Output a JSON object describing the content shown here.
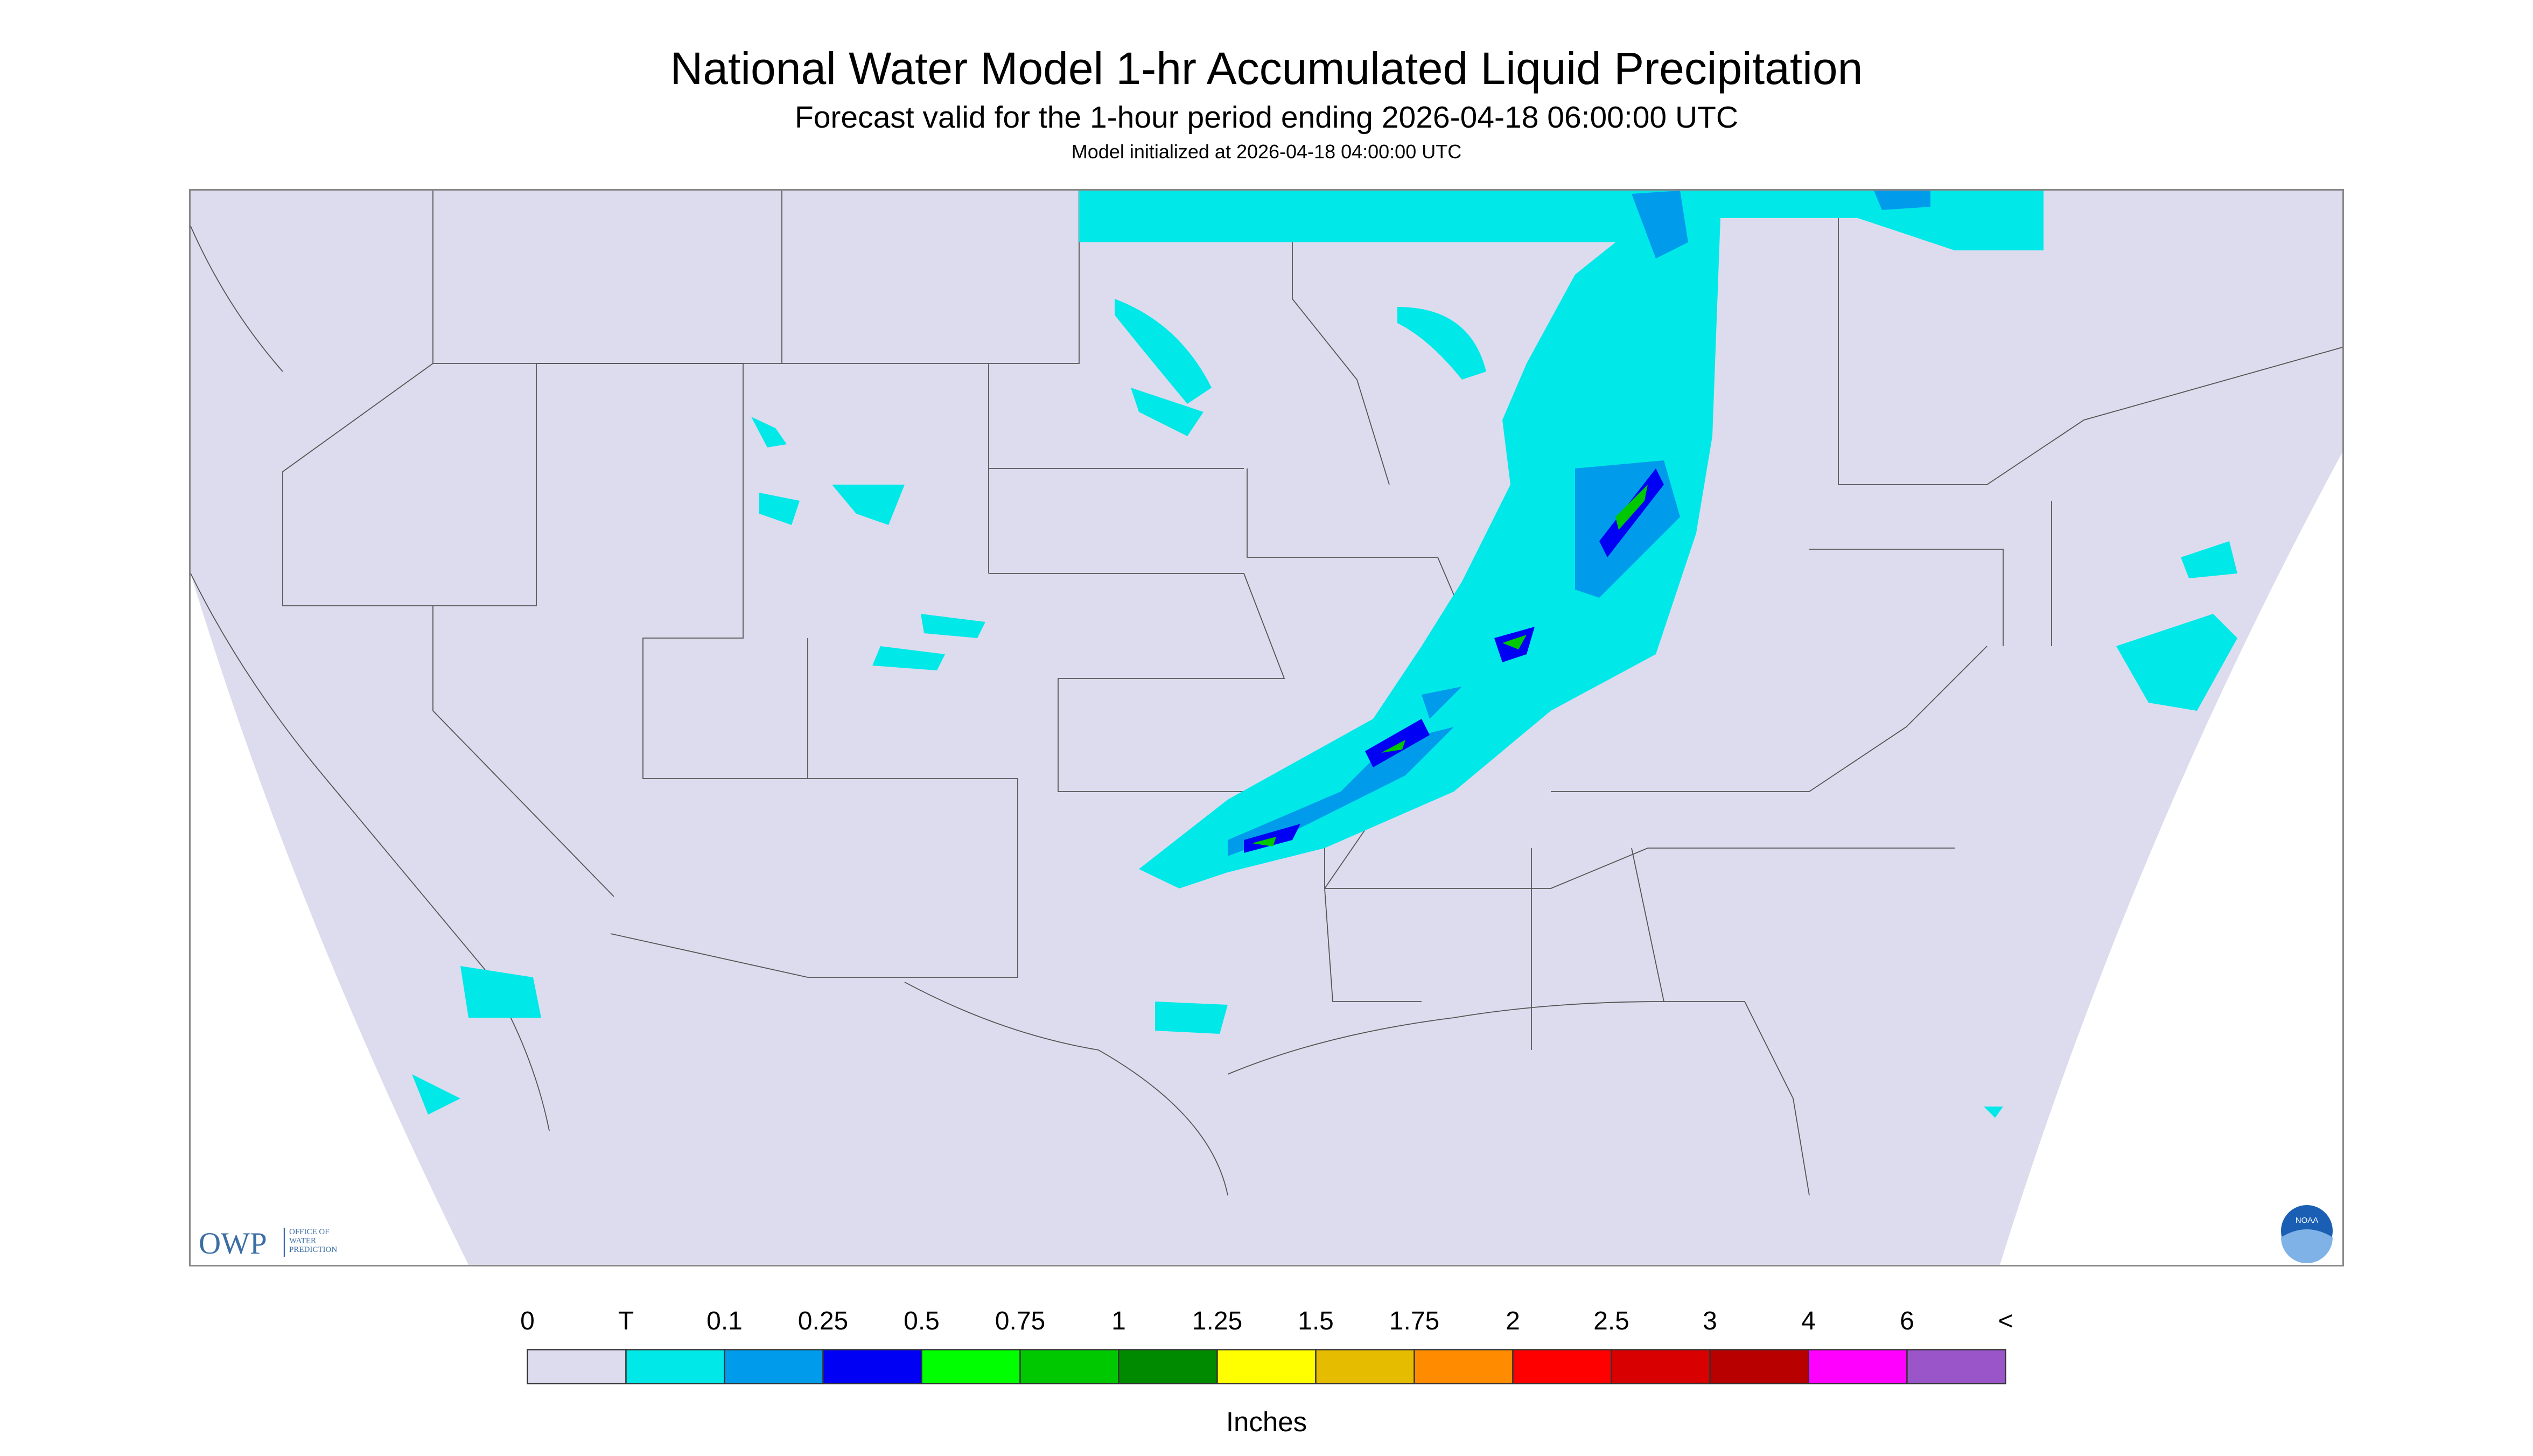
{
  "header": {
    "title": "National Water Model 1-hr Accumulated Liquid Precipitation",
    "subtitle": "Forecast valid for the 1-hour period ending 2026-04-18 06:00:00 UTC",
    "init": "Model initialized at 2026-04-18 04:00:00 UTC"
  },
  "legend": {
    "labels": [
      "0",
      "T",
      "0.1",
      "0.25",
      "0.5",
      "0.75",
      "1",
      "1.25",
      "1.5",
      "1.75",
      "2",
      "2.5",
      "3",
      "4",
      "6",
      "<"
    ],
    "colors": [
      "#dcdcee",
      "#00e8e8",
      "#009ceb",
      "#0000f5",
      "#00ff00",
      "#00c800",
      "#008a00",
      "#ffff00",
      "#e6bc00",
      "#ff8c00",
      "#ff0000",
      "#d80000",
      "#b80000",
      "#ff00ff",
      "#9a55c8"
    ],
    "unit": "Inches"
  },
  "logos": {
    "owp": "OWP",
    "owp_text": [
      "OFFICE OF",
      "WATER",
      "PREDICTION"
    ],
    "noaa": "NOAA"
  }
}
